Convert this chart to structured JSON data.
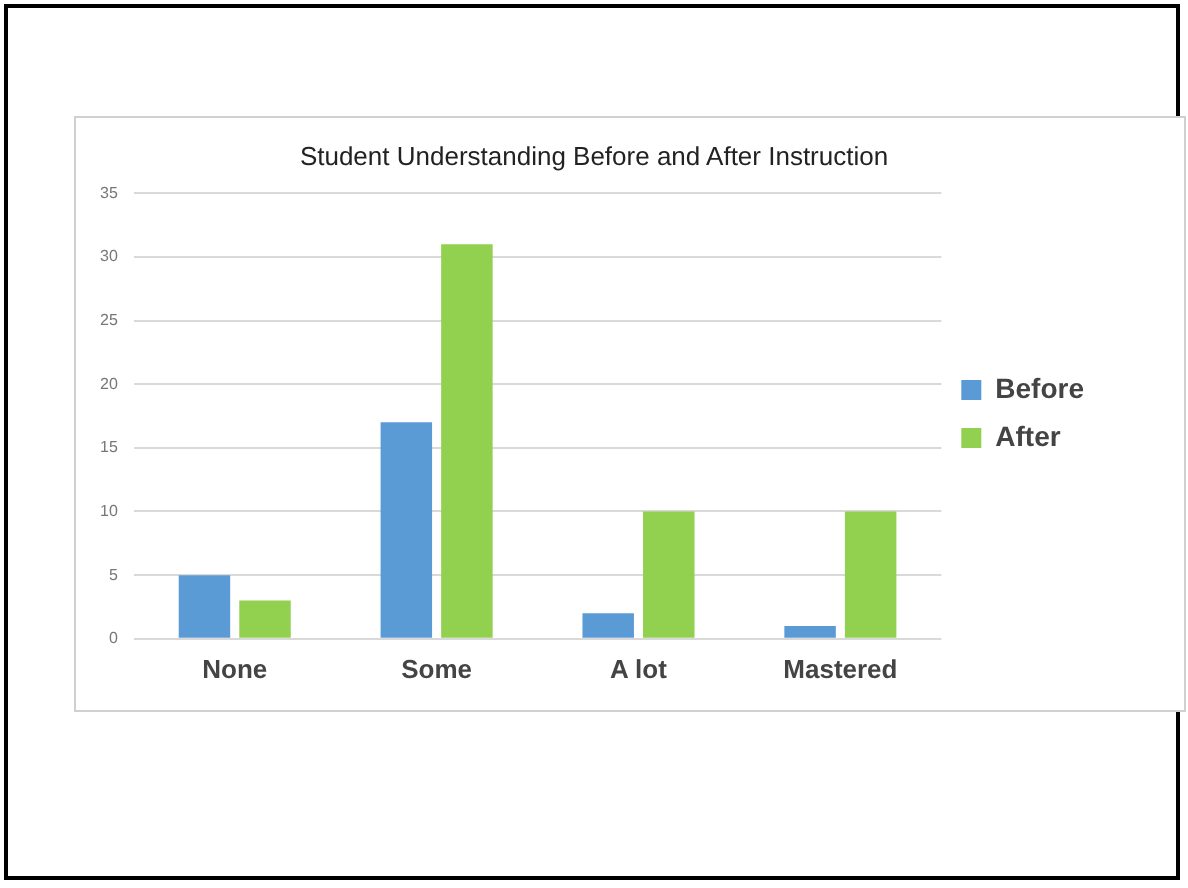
{
  "chart_data": {
    "type": "bar",
    "title": "Student Understanding Before and After Instruction",
    "categories": [
      "None",
      "Some",
      "A lot",
      "Mastered"
    ],
    "series": [
      {
        "name": "Before",
        "color": "#5b9bd5",
        "values": [
          5,
          17,
          2,
          1
        ]
      },
      {
        "name": "After",
        "color": "#92d050",
        "values": [
          3,
          31,
          10,
          10
        ]
      }
    ],
    "ylim": [
      0,
      35
    ],
    "yticks": [
      0,
      5,
      10,
      15,
      20,
      25,
      30,
      35
    ],
    "grid": "y",
    "legend": "right"
  }
}
